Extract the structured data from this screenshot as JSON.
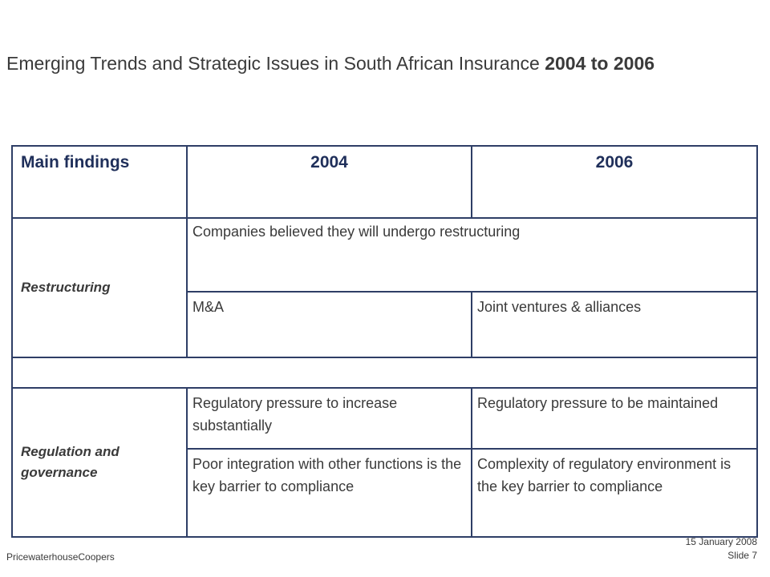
{
  "slide": {
    "title_regular": "Emerging Trends and Strategic Issues in South African Insurance ",
    "title_bold": "2004 to 2006"
  },
  "table": {
    "headers": [
      "Main findings",
      "2004",
      "2006"
    ],
    "restructuring": {
      "label": "Restructuring",
      "merged_text": "Companies believed they will undergo restructuring",
      "row2": [
        "M&A",
        "Joint ventures & alliances"
      ]
    },
    "regulation": {
      "label": "Regulation and governance",
      "row1": [
        "Regulatory pressure to increase substantially",
        "Regulatory pressure to be maintained"
      ],
      "row2": [
        "Poor integration with other functions is the key barrier to compliance",
        "Complexity of regulatory environment is the key barrier to compliance"
      ]
    }
  },
  "footer": {
    "company": "PricewaterhouseCoopers",
    "date": "15 January 2008",
    "slide_number": "Slide 7"
  },
  "colors": {
    "border": "#2e3e66",
    "heading": "#1f2f5a",
    "text": "#3a3a3a"
  }
}
